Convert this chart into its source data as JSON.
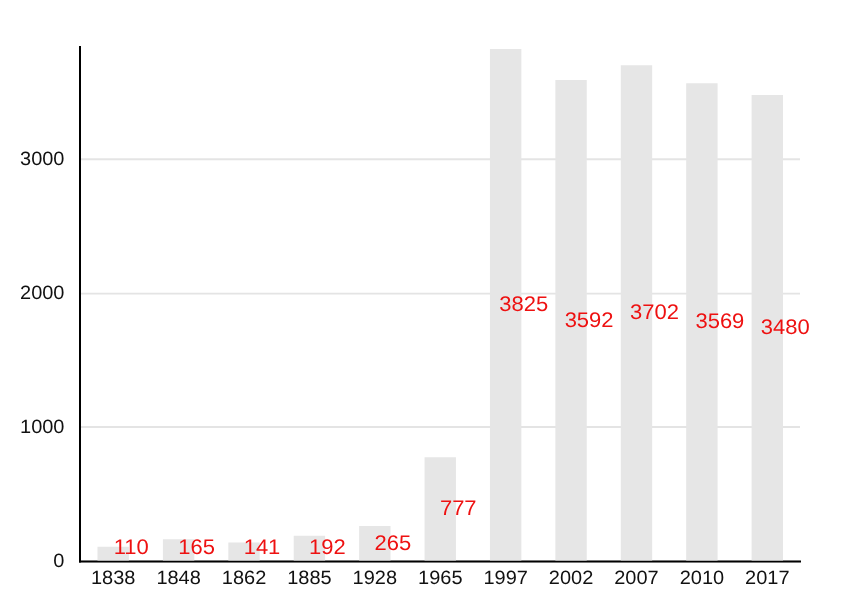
{
  "chart_data": {
    "type": "bar",
    "categories": [
      "1838",
      "1848",
      "1862",
      "1885",
      "1928",
      "1965",
      "1997",
      "2002",
      "2007",
      "2010",
      "2017"
    ],
    "values": [
      110,
      165,
      141,
      192,
      265,
      777,
      3825,
      3592,
      3702,
      3569,
      3480
    ],
    "color": "#e6e6e6",
    "ylim": [
      0,
      3840
    ],
    "yticks": [
      0,
      1000,
      2000,
      3000
    ],
    "grid": "y",
    "legend": false,
    "data_labels": true
  }
}
